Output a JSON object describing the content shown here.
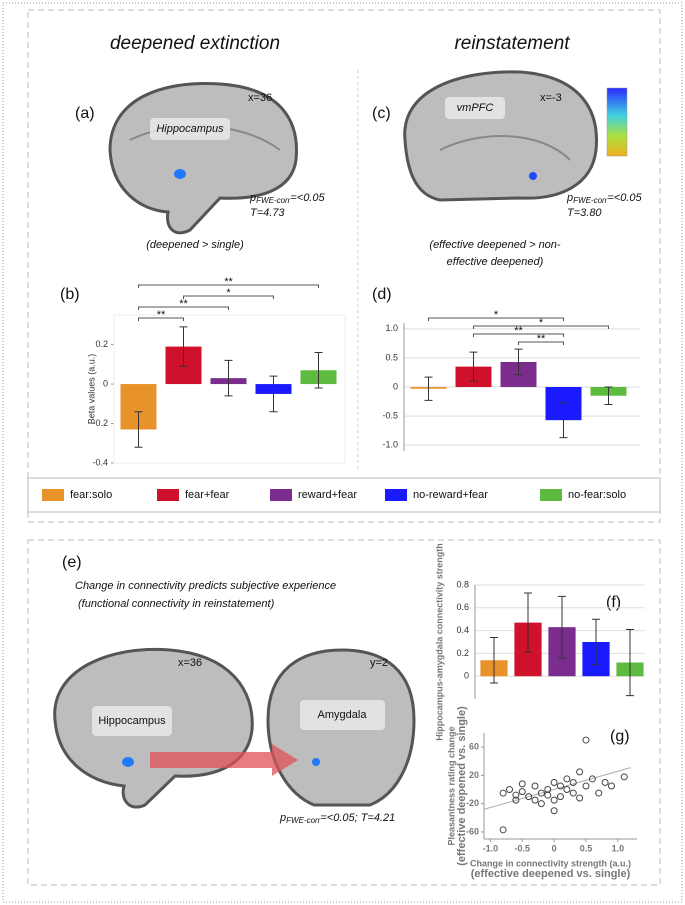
{
  "header": {
    "left_title": "deepened extinction",
    "right_title": "reinstatement"
  },
  "panel_a": {
    "label": "(a)",
    "coord": "x=36",
    "region": "Hippocampus",
    "p": "p",
    "p_sub": "FWE-corr",
    "p_rest": "=<0.05",
    "stat": "T=4.73",
    "contrast": "(deepened > single)"
  },
  "panel_c": {
    "label": "(c)",
    "coord": "x=-3",
    "region": "vmPFC",
    "p": "p",
    "p_sub": "FWE-corr",
    "p_rest": "=<0.05",
    "stat": "T=3.80",
    "contrast": [
      "(effective deepened > non-",
      "effective deepened)"
    ]
  },
  "legend": [
    {
      "name": "fear:solo",
      "color": "#e8922a"
    },
    {
      "name": "fear+fear",
      "color": "#d0112b"
    },
    {
      "name": "reward+fear",
      "color": "#7b2d8e"
    },
    {
      "name": "no-reward+fear",
      "color": "#1a1aff"
    },
    {
      "name": "no-fear:solo",
      "color": "#5dbb3f"
    }
  ],
  "panel_e": {
    "label": "(e)",
    "title": "Change in connectivity predicts subjective experience",
    "subtitle": "(functional connectivity in reinstatement)",
    "left_coord": "x=36",
    "right_coord": "y=2",
    "left_region": "Hippocampus",
    "right_region": "Amygdala",
    "p": "p",
    "p_sub": "FWE-corr",
    "p_rest": "=<0.05; T=4.21"
  },
  "chart_data": [
    {
      "type": "bar",
      "label": "(b)",
      "ylabel": "Beta values (a.u.)",
      "values": [
        -0.23,
        0.19,
        0.03,
        -0.05,
        0.07
      ],
      "errors": [
        0.09,
        0.1,
        0.09,
        0.09,
        0.09
      ],
      "colors": [
        "#e8922a",
        "#d0112b",
        "#7b2d8e",
        "#1a1aff",
        "#5dbb3f"
      ],
      "ylim": [
        -0.4,
        0.35
      ],
      "yticks": [
        -0.4,
        -0.2,
        0,
        0.2
      ],
      "grid": false,
      "significance": [
        {
          "from": 0,
          "to": 4,
          "label": "**"
        },
        {
          "from": 1,
          "to": 3,
          "label": "*"
        },
        {
          "from": 0,
          "to": 2,
          "label": "**"
        },
        {
          "from": 0,
          "to": 1,
          "label": "**"
        }
      ]
    },
    {
      "type": "bar",
      "label": "(d)",
      "values": [
        -0.03,
        0.35,
        0.43,
        -0.57,
        -0.15
      ],
      "errors": [
        0.2,
        0.25,
        0.22,
        0.3,
        0.15
      ],
      "colors": [
        "#e8922a",
        "#d0112b",
        "#7b2d8e",
        "#1a1aff",
        "#5dbb3f"
      ],
      "ylim": [
        -1.1,
        1.1
      ],
      "yticks": [
        {
          "value": -1,
          "label": "-1.0"
        },
        -0.5,
        0,
        0.5,
        {
          "value": 1,
          "label": "1.0"
        }
      ],
      "grid": true,
      "significance": [
        {
          "from": 0,
          "to": 3,
          "label": "*"
        },
        {
          "from": 1,
          "to": 4,
          "label": "*"
        },
        {
          "from": 1,
          "to": 3,
          "label": "**"
        },
        {
          "from": 2,
          "to": 3,
          "label": "**"
        }
      ]
    },
    {
      "type": "bar",
      "label": "(f)",
      "ylabel": "Hippocampus-amygdala connectivity strength",
      "values": [
        0.14,
        0.47,
        0.43,
        0.3,
        0.12
      ],
      "errors": [
        0.2,
        0.26,
        0.27,
        0.2,
        0.29
      ],
      "colors": [
        "#e8922a",
        "#d0112b",
        "#7b2d8e",
        "#1a1aff",
        "#5dbb3f"
      ],
      "ylim": [
        -0.2,
        0.8
      ],
      "yticks": [
        0,
        0.2,
        0.4,
        0.6,
        0.8
      ],
      "grid": true,
      "significance": []
    },
    {
      "type": "scatter",
      "label": "(g)",
      "ylabel": "Pleasantness rating change",
      "ylabel_note": "(effective deepened vs. single)",
      "xlabel": "Change in connectivity strength (a.u.)",
      "xlabel_note": "(effective deepened vs. single)",
      "x": [
        -0.8,
        -0.8,
        -0.7,
        -0.6,
        -0.6,
        -0.5,
        -0.5,
        -0.4,
        -0.3,
        -0.3,
        -0.2,
        -0.2,
        -0.1,
        -0.1,
        0,
        0,
        0,
        0.1,
        0.1,
        0.2,
        0.2,
        0.3,
        0.3,
        0.4,
        0.4,
        0.5,
        0.5,
        0.6,
        0.7,
        0.8,
        0.9,
        1.1
      ],
      "y": [
        -57,
        -5,
        0,
        -8,
        -15,
        8,
        -3,
        -10,
        5,
        -15,
        -5,
        -20,
        0,
        -8,
        10,
        -15,
        -30,
        5,
        -10,
        15,
        0,
        10,
        -5,
        25,
        -12,
        70,
        5,
        15,
        -5,
        10,
        5,
        18
      ],
      "trend_line": {
        "x": [
          -1.1,
          1.2
        ],
        "y": [
          -28,
          31
        ]
      },
      "xlim": [
        -1.1,
        1.3
      ],
      "ylim": [
        -70,
        80
      ],
      "xticks": [
        {
          "value": -1,
          "label": "-1.0"
        },
        -0.5,
        0,
        0.5,
        {
          "value": 1,
          "label": "1.0"
        }
      ],
      "yticks": [
        -60,
        -20,
        20,
        60
      ]
    }
  ]
}
